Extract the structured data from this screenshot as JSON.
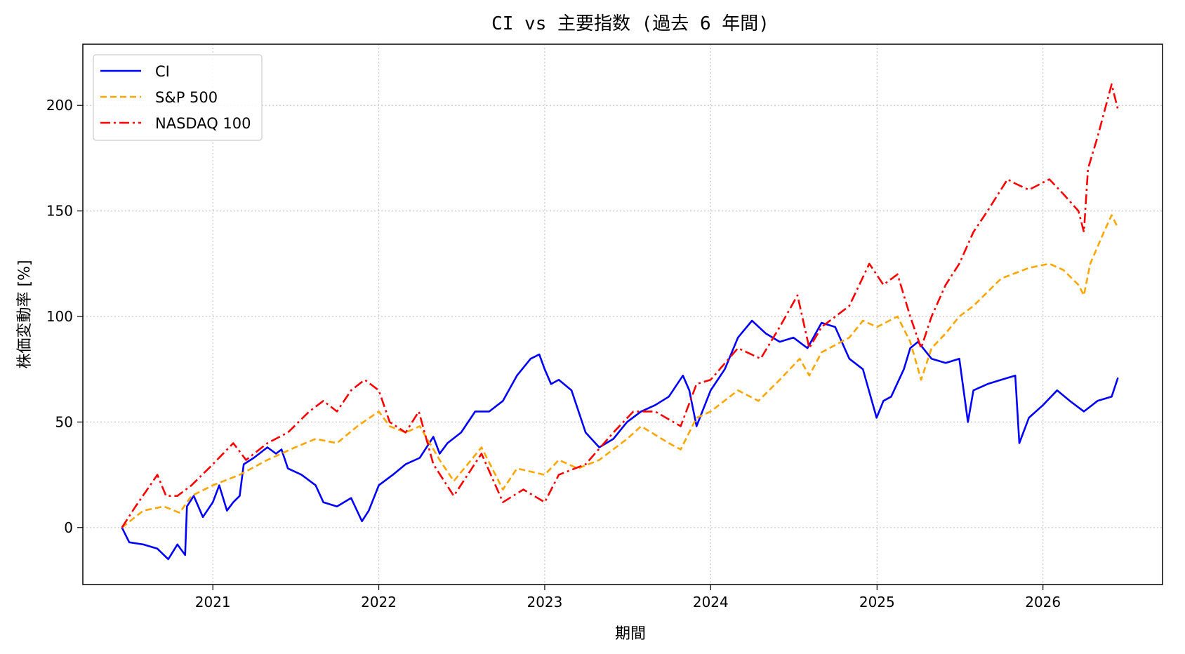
{
  "chart_data": {
    "type": "line",
    "title": "CI vs 主要指数 (過去 6 年間)",
    "xlabel": "期間",
    "ylabel": "株価変動率 [%]",
    "xticks": [
      "2021",
      "2022",
      "2023",
      "2024",
      "2025",
      "2026"
    ],
    "yticks": [
      0,
      50,
      100,
      150,
      200
    ],
    "xlim": [
      "2020-03-21",
      "2026-09-21"
    ],
    "ylim": [
      -27,
      229
    ],
    "grid": true,
    "legend_position": "upper-left",
    "series": [
      {
        "name": "CI",
        "color": "#0000ff",
        "style": "solid",
        "points": [
          [
            "2020-06-15",
            0
          ],
          [
            "2020-07-01",
            -7
          ],
          [
            "2020-08-01",
            -8
          ],
          [
            "2020-09-01",
            -10
          ],
          [
            "2020-09-25",
            -15
          ],
          [
            "2020-10-15",
            -8
          ],
          [
            "2020-11-01",
            -13
          ],
          [
            "2020-11-05",
            10
          ],
          [
            "2020-11-20",
            15
          ],
          [
            "2020-12-10",
            5
          ],
          [
            "2021-01-01",
            12
          ],
          [
            "2021-01-15",
            20
          ],
          [
            "2021-02-01",
            8
          ],
          [
            "2021-02-15",
            12
          ],
          [
            "2021-03-01",
            15
          ],
          [
            "2021-03-10",
            30
          ],
          [
            "2021-04-01",
            33
          ],
          [
            "2021-05-01",
            38
          ],
          [
            "2021-05-20",
            35
          ],
          [
            "2021-06-01",
            37
          ],
          [
            "2021-06-15",
            28
          ],
          [
            "2021-07-15",
            25
          ],
          [
            "2021-08-15",
            20
          ],
          [
            "2021-09-01",
            12
          ],
          [
            "2021-10-01",
            10
          ],
          [
            "2021-11-01",
            14
          ],
          [
            "2021-11-25",
            3
          ],
          [
            "2021-12-10",
            8
          ],
          [
            "2022-01-01",
            20
          ],
          [
            "2022-02-01",
            25
          ],
          [
            "2022-03-01",
            30
          ],
          [
            "2022-04-01",
            33
          ],
          [
            "2022-05-01",
            43
          ],
          [
            "2022-05-15",
            35
          ],
          [
            "2022-06-01",
            40
          ],
          [
            "2022-07-01",
            45
          ],
          [
            "2022-08-01",
            55
          ],
          [
            "2022-09-01",
            55
          ],
          [
            "2022-10-01",
            60
          ],
          [
            "2022-11-01",
            72
          ],
          [
            "2022-12-01",
            80
          ],
          [
            "2022-12-20",
            82
          ],
          [
            "2023-01-01",
            75
          ],
          [
            "2023-01-15",
            68
          ],
          [
            "2023-02-01",
            70
          ],
          [
            "2023-03-01",
            65
          ],
          [
            "2023-04-01",
            45
          ],
          [
            "2023-05-01",
            38
          ],
          [
            "2023-06-01",
            42
          ],
          [
            "2023-07-01",
            50
          ],
          [
            "2023-08-01",
            55
          ],
          [
            "2023-09-01",
            58
          ],
          [
            "2023-10-01",
            62
          ],
          [
            "2023-11-01",
            72
          ],
          [
            "2023-11-15",
            65
          ],
          [
            "2023-12-01",
            48
          ],
          [
            "2024-01-01",
            65
          ],
          [
            "2024-02-01",
            75
          ],
          [
            "2024-03-01",
            90
          ],
          [
            "2024-04-01",
            98
          ],
          [
            "2024-05-01",
            92
          ],
          [
            "2024-06-01",
            88
          ],
          [
            "2024-07-01",
            90
          ],
          [
            "2024-08-01",
            85
          ],
          [
            "2024-09-01",
            97
          ],
          [
            "2024-10-01",
            95
          ],
          [
            "2024-11-01",
            80
          ],
          [
            "2024-12-01",
            75
          ],
          [
            "2024-12-31",
            52
          ],
          [
            "2025-01-15",
            60
          ],
          [
            "2025-02-01",
            62
          ],
          [
            "2025-03-01",
            75
          ],
          [
            "2025-03-15",
            85
          ],
          [
            "2025-04-01",
            88
          ],
          [
            "2025-05-01",
            80
          ],
          [
            "2025-06-01",
            78
          ],
          [
            "2025-07-01",
            80
          ],
          [
            "2025-07-20",
            50
          ],
          [
            "2025-08-01",
            65
          ],
          [
            "2025-09-01",
            68
          ],
          [
            "2025-10-01",
            70
          ],
          [
            "2025-11-01",
            72
          ],
          [
            "2025-11-10",
            40
          ],
          [
            "2025-12-01",
            52
          ],
          [
            "2026-01-01",
            58
          ],
          [
            "2026-02-01",
            65
          ],
          [
            "2026-03-01",
            60
          ],
          [
            "2026-04-01",
            55
          ],
          [
            "2026-05-01",
            60
          ],
          [
            "2026-06-01",
            62
          ],
          [
            "2026-06-15",
            71
          ]
        ]
      },
      {
        "name": "S&P 500",
        "color": "#ffa500",
        "style": "dashed",
        "points": [
          [
            "2020-06-15",
            0
          ],
          [
            "2020-08-01",
            8
          ],
          [
            "2020-09-15",
            10
          ],
          [
            "2020-10-20",
            7
          ],
          [
            "2020-11-15",
            15
          ],
          [
            "2021-01-01",
            20
          ],
          [
            "2021-03-01",
            25
          ],
          [
            "2021-05-01",
            32
          ],
          [
            "2021-07-01",
            38
          ],
          [
            "2021-08-15",
            42
          ],
          [
            "2021-10-01",
            40
          ],
          [
            "2021-11-15",
            48
          ],
          [
            "2022-01-01",
            55
          ],
          [
            "2022-01-25",
            48
          ],
          [
            "2022-03-01",
            45
          ],
          [
            "2022-04-01",
            48
          ],
          [
            "2022-05-15",
            32
          ],
          [
            "2022-06-15",
            22
          ],
          [
            "2022-08-15",
            38
          ],
          [
            "2022-10-01",
            18
          ],
          [
            "2022-11-01",
            28
          ],
          [
            "2023-01-01",
            25
          ],
          [
            "2023-02-01",
            32
          ],
          [
            "2023-03-15",
            28
          ],
          [
            "2023-05-01",
            32
          ],
          [
            "2023-07-01",
            42
          ],
          [
            "2023-08-01",
            48
          ],
          [
            "2023-10-01",
            40
          ],
          [
            "2023-10-27",
            37
          ],
          [
            "2023-12-01",
            52
          ],
          [
            "2024-01-01",
            55
          ],
          [
            "2024-03-01",
            65
          ],
          [
            "2024-04-15",
            60
          ],
          [
            "2024-06-01",
            70
          ],
          [
            "2024-07-15",
            80
          ],
          [
            "2024-08-05",
            72
          ],
          [
            "2024-09-01",
            83
          ],
          [
            "2024-11-01",
            90
          ],
          [
            "2024-12-01",
            98
          ],
          [
            "2025-01-01",
            95
          ],
          [
            "2025-02-15",
            100
          ],
          [
            "2025-03-15",
            88
          ],
          [
            "2025-04-08",
            70
          ],
          [
            "2025-05-01",
            85
          ],
          [
            "2025-06-01",
            92
          ],
          [
            "2025-07-01",
            100
          ],
          [
            "2025-08-01",
            105
          ],
          [
            "2025-10-01",
            118
          ],
          [
            "2025-12-01",
            123
          ],
          [
            "2026-01-15",
            125
          ],
          [
            "2026-02-15",
            122
          ],
          [
            "2026-03-20",
            115
          ],
          [
            "2026-04-01",
            110
          ],
          [
            "2026-04-15",
            125
          ],
          [
            "2026-05-15",
            140
          ],
          [
            "2026-06-01",
            148
          ],
          [
            "2026-06-15",
            142
          ]
        ]
      },
      {
        "name": "NASDAQ 100",
        "color": "#ff0000",
        "style": "dashdot",
        "points": [
          [
            "2020-06-15",
            0
          ],
          [
            "2020-07-15",
            10
          ],
          [
            "2020-09-01",
            25
          ],
          [
            "2020-09-20",
            15
          ],
          [
            "2020-10-15",
            15
          ],
          [
            "2020-11-15",
            20
          ],
          [
            "2021-01-01",
            30
          ],
          [
            "2021-02-15",
            40
          ],
          [
            "2021-03-15",
            32
          ],
          [
            "2021-05-01",
            40
          ],
          [
            "2021-06-15",
            45
          ],
          [
            "2021-08-01",
            55
          ],
          [
            "2021-09-01",
            60
          ],
          [
            "2021-10-01",
            55
          ],
          [
            "2021-11-01",
            65
          ],
          [
            "2021-12-01",
            70
          ],
          [
            "2022-01-01",
            65
          ],
          [
            "2022-01-25",
            50
          ],
          [
            "2022-03-01",
            45
          ],
          [
            "2022-03-30",
            55
          ],
          [
            "2022-05-01",
            30
          ],
          [
            "2022-06-15",
            15
          ],
          [
            "2022-08-15",
            35
          ],
          [
            "2022-10-01",
            12
          ],
          [
            "2022-11-15",
            18
          ],
          [
            "2023-01-01",
            12
          ],
          [
            "2023-02-01",
            25
          ],
          [
            "2023-04-01",
            30
          ],
          [
            "2023-06-01",
            45
          ],
          [
            "2023-07-15",
            55
          ],
          [
            "2023-09-01",
            55
          ],
          [
            "2023-10-27",
            48
          ],
          [
            "2023-12-01",
            68
          ],
          [
            "2024-01-01",
            70
          ],
          [
            "2024-03-01",
            85
          ],
          [
            "2024-04-20",
            80
          ],
          [
            "2024-06-01",
            95
          ],
          [
            "2024-07-10",
            110
          ],
          [
            "2024-08-05",
            85
          ],
          [
            "2024-09-01",
            95
          ],
          [
            "2024-11-01",
            105
          ],
          [
            "2024-12-15",
            125
          ],
          [
            "2025-01-15",
            115
          ],
          [
            "2025-02-15",
            120
          ],
          [
            "2025-03-15",
            100
          ],
          [
            "2025-04-08",
            85
          ],
          [
            "2025-05-01",
            100
          ],
          [
            "2025-06-01",
            115
          ],
          [
            "2025-07-01",
            125
          ],
          [
            "2025-08-01",
            140
          ],
          [
            "2025-09-01",
            150
          ],
          [
            "2025-10-15",
            165
          ],
          [
            "2025-11-01",
            163
          ],
          [
            "2025-12-01",
            160
          ],
          [
            "2026-01-15",
            165
          ],
          [
            "2026-02-15",
            158
          ],
          [
            "2026-03-20",
            150
          ],
          [
            "2026-04-01",
            140
          ],
          [
            "2026-04-10",
            170
          ],
          [
            "2026-05-01",
            185
          ],
          [
            "2026-06-01",
            210
          ],
          [
            "2026-06-15",
            198
          ]
        ]
      }
    ]
  }
}
